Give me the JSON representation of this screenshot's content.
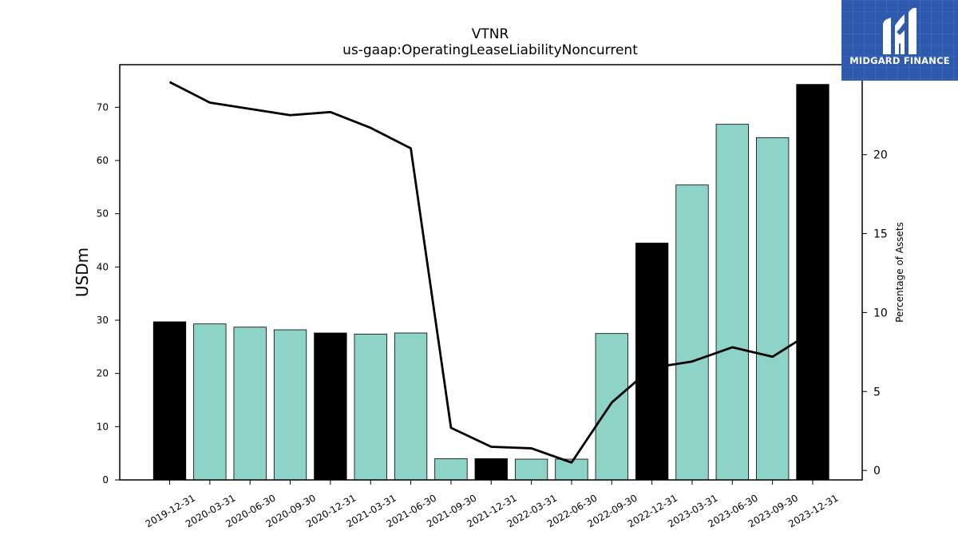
{
  "chart_data": {
    "type": "bar",
    "title": "VTNR",
    "subtitle": "us-gaap:OperatingLeaseLiabilityNoncurrent",
    "ylabel": "USDm",
    "y2label": "Percentage of Assets",
    "ylim": [
      0,
      78
    ],
    "y2lim": [
      -0.6,
      25.7
    ],
    "yticks": [
      "0",
      "10",
      "20",
      "30",
      "40",
      "50",
      "60",
      "70"
    ],
    "y2ticks": [
      "0",
      "5",
      "10",
      "15",
      "20"
    ],
    "categories": [
      "2019-12-31",
      "2020-03-31",
      "2020-06-30",
      "2020-09-30",
      "2020-12-31",
      "2021-03-31",
      "2021-06-30",
      "2021-09-30",
      "2021-12-31",
      "2022-03-31",
      "2022-06-30",
      "2022-09-30",
      "2022-12-31",
      "2023-03-31",
      "2023-06-30",
      "2023-09-30",
      "2023-12-31"
    ],
    "series": [
      {
        "kind": "bar",
        "values": [
          29.7,
          29.3,
          28.7,
          28.2,
          27.6,
          27.4,
          27.6,
          4.0,
          4.0,
          3.9,
          3.9,
          27.5,
          44.5,
          55.4,
          66.8,
          64.3,
          74.3
        ],
        "colors": [
          "#000000",
          "#8dd3c7",
          "#8dd3c7",
          "#8dd3c7",
          "#000000",
          "#8dd3c7",
          "#8dd3c7",
          "#8dd3c7",
          "#000000",
          "#8dd3c7",
          "#8dd3c7",
          "#8dd3c7",
          "#000000",
          "#8dd3c7",
          "#8dd3c7",
          "#8dd3c7",
          "#000000"
        ]
      },
      {
        "kind": "line",
        "axis": "right",
        "color": "#000000",
        "values": [
          24.6,
          23.3,
          22.9,
          22.5,
          22.7,
          21.7,
          20.4,
          2.7,
          1.5,
          1.4,
          0.5,
          4.3,
          6.5,
          6.9,
          7.8,
          7.2,
          8.8
        ]
      }
    ]
  },
  "logo": {
    "text": "MIDGARD FINANCE",
    "background": "#2d5aad"
  }
}
